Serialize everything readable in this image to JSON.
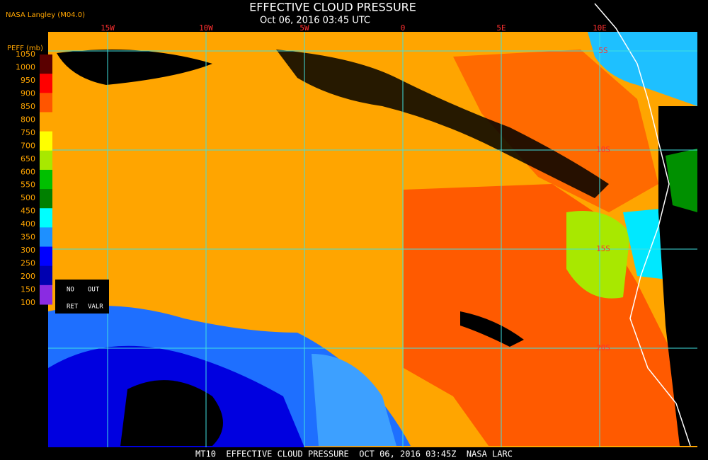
{
  "header": {
    "title": "EFFECTIVE CLOUD PRESSURE",
    "subtitle": "Oct 06, 2016 03:45 UTC",
    "source": "NASA Langley (M04.0)"
  },
  "colorbar": {
    "label": "PEFF (mb)",
    "ticks": [
      1050,
      1000,
      950,
      900,
      850,
      800,
      750,
      700,
      650,
      600,
      550,
      500,
      450,
      400,
      350,
      300,
      250,
      200,
      150,
      100
    ],
    "colors": [
      "#5a0000",
      "#ff0000",
      "#ff5500",
      "#ffa500",
      "#ffff00",
      "#a8e800",
      "#00c000",
      "#008000",
      "#00ffff",
      "#1e90ff",
      "#0000ff",
      "#0000b0",
      "#8a2be2"
    ],
    "legend_top": [
      "NO",
      "OUT"
    ],
    "legend_bottom": [
      "RET",
      "VALR"
    ]
  },
  "grid": {
    "lon_labels": [
      "15W",
      "10W",
      "5W",
      "0",
      "5E",
      "10E"
    ],
    "lat_labels": [
      "5S",
      "10S",
      "15S",
      "20S"
    ]
  },
  "footer": "MT10  EFFECTIVE CLOUD PRESSURE  OCT 06, 2016 03:45Z  NASA LARC"
}
